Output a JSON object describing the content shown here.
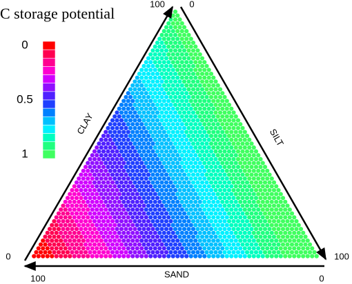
{
  "chart_data": {
    "type": "ternary",
    "title": "C storage potential",
    "axes": [
      {
        "label": "CLAY",
        "ticks": [
          0,
          100
        ]
      },
      {
        "label": "SILT",
        "ticks": [
          0,
          100
        ]
      },
      {
        "label": "SAND",
        "ticks": [
          0,
          100
        ]
      }
    ],
    "colorbar": {
      "colors": [
        "#ff0000",
        "#ff0050",
        "#ff0090",
        "#ff00d0",
        "#d000ff",
        "#9010ff",
        "#5020ff",
        "#2040ff",
        "#0080ff",
        "#00c0ff",
        "#00f0ff",
        "#00ffc0",
        "#20ff80",
        "#40ff60"
      ],
      "clim": [
        0,
        1
      ],
      "ticks": [
        0,
        0.5,
        1
      ]
    }
  }
}
